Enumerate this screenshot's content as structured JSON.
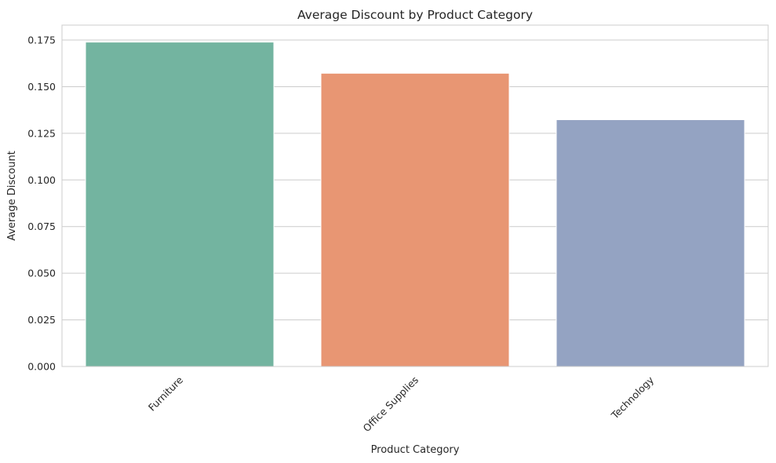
{
  "chart_data": {
    "type": "bar",
    "title": "Average Discount by Product Category",
    "xlabel": "Product Category",
    "ylabel": "Average Discount",
    "categories": [
      "Furniture",
      "Office Supplies",
      "Technology"
    ],
    "values": [
      0.1739,
      0.1572,
      0.1323
    ],
    "colors": [
      "#73b4a0",
      "#e89673",
      "#94a3c2"
    ],
    "ylim": [
      0,
      0.183
    ],
    "yticks": [
      0.0,
      0.025,
      0.05,
      0.075,
      0.1,
      0.125,
      0.15,
      0.175
    ],
    "ytick_labels": [
      "0.000",
      "0.025",
      "0.050",
      "0.075",
      "0.100",
      "0.125",
      "0.150",
      "0.175"
    ],
    "grid": true,
    "xtick_rotation_deg": 45
  }
}
